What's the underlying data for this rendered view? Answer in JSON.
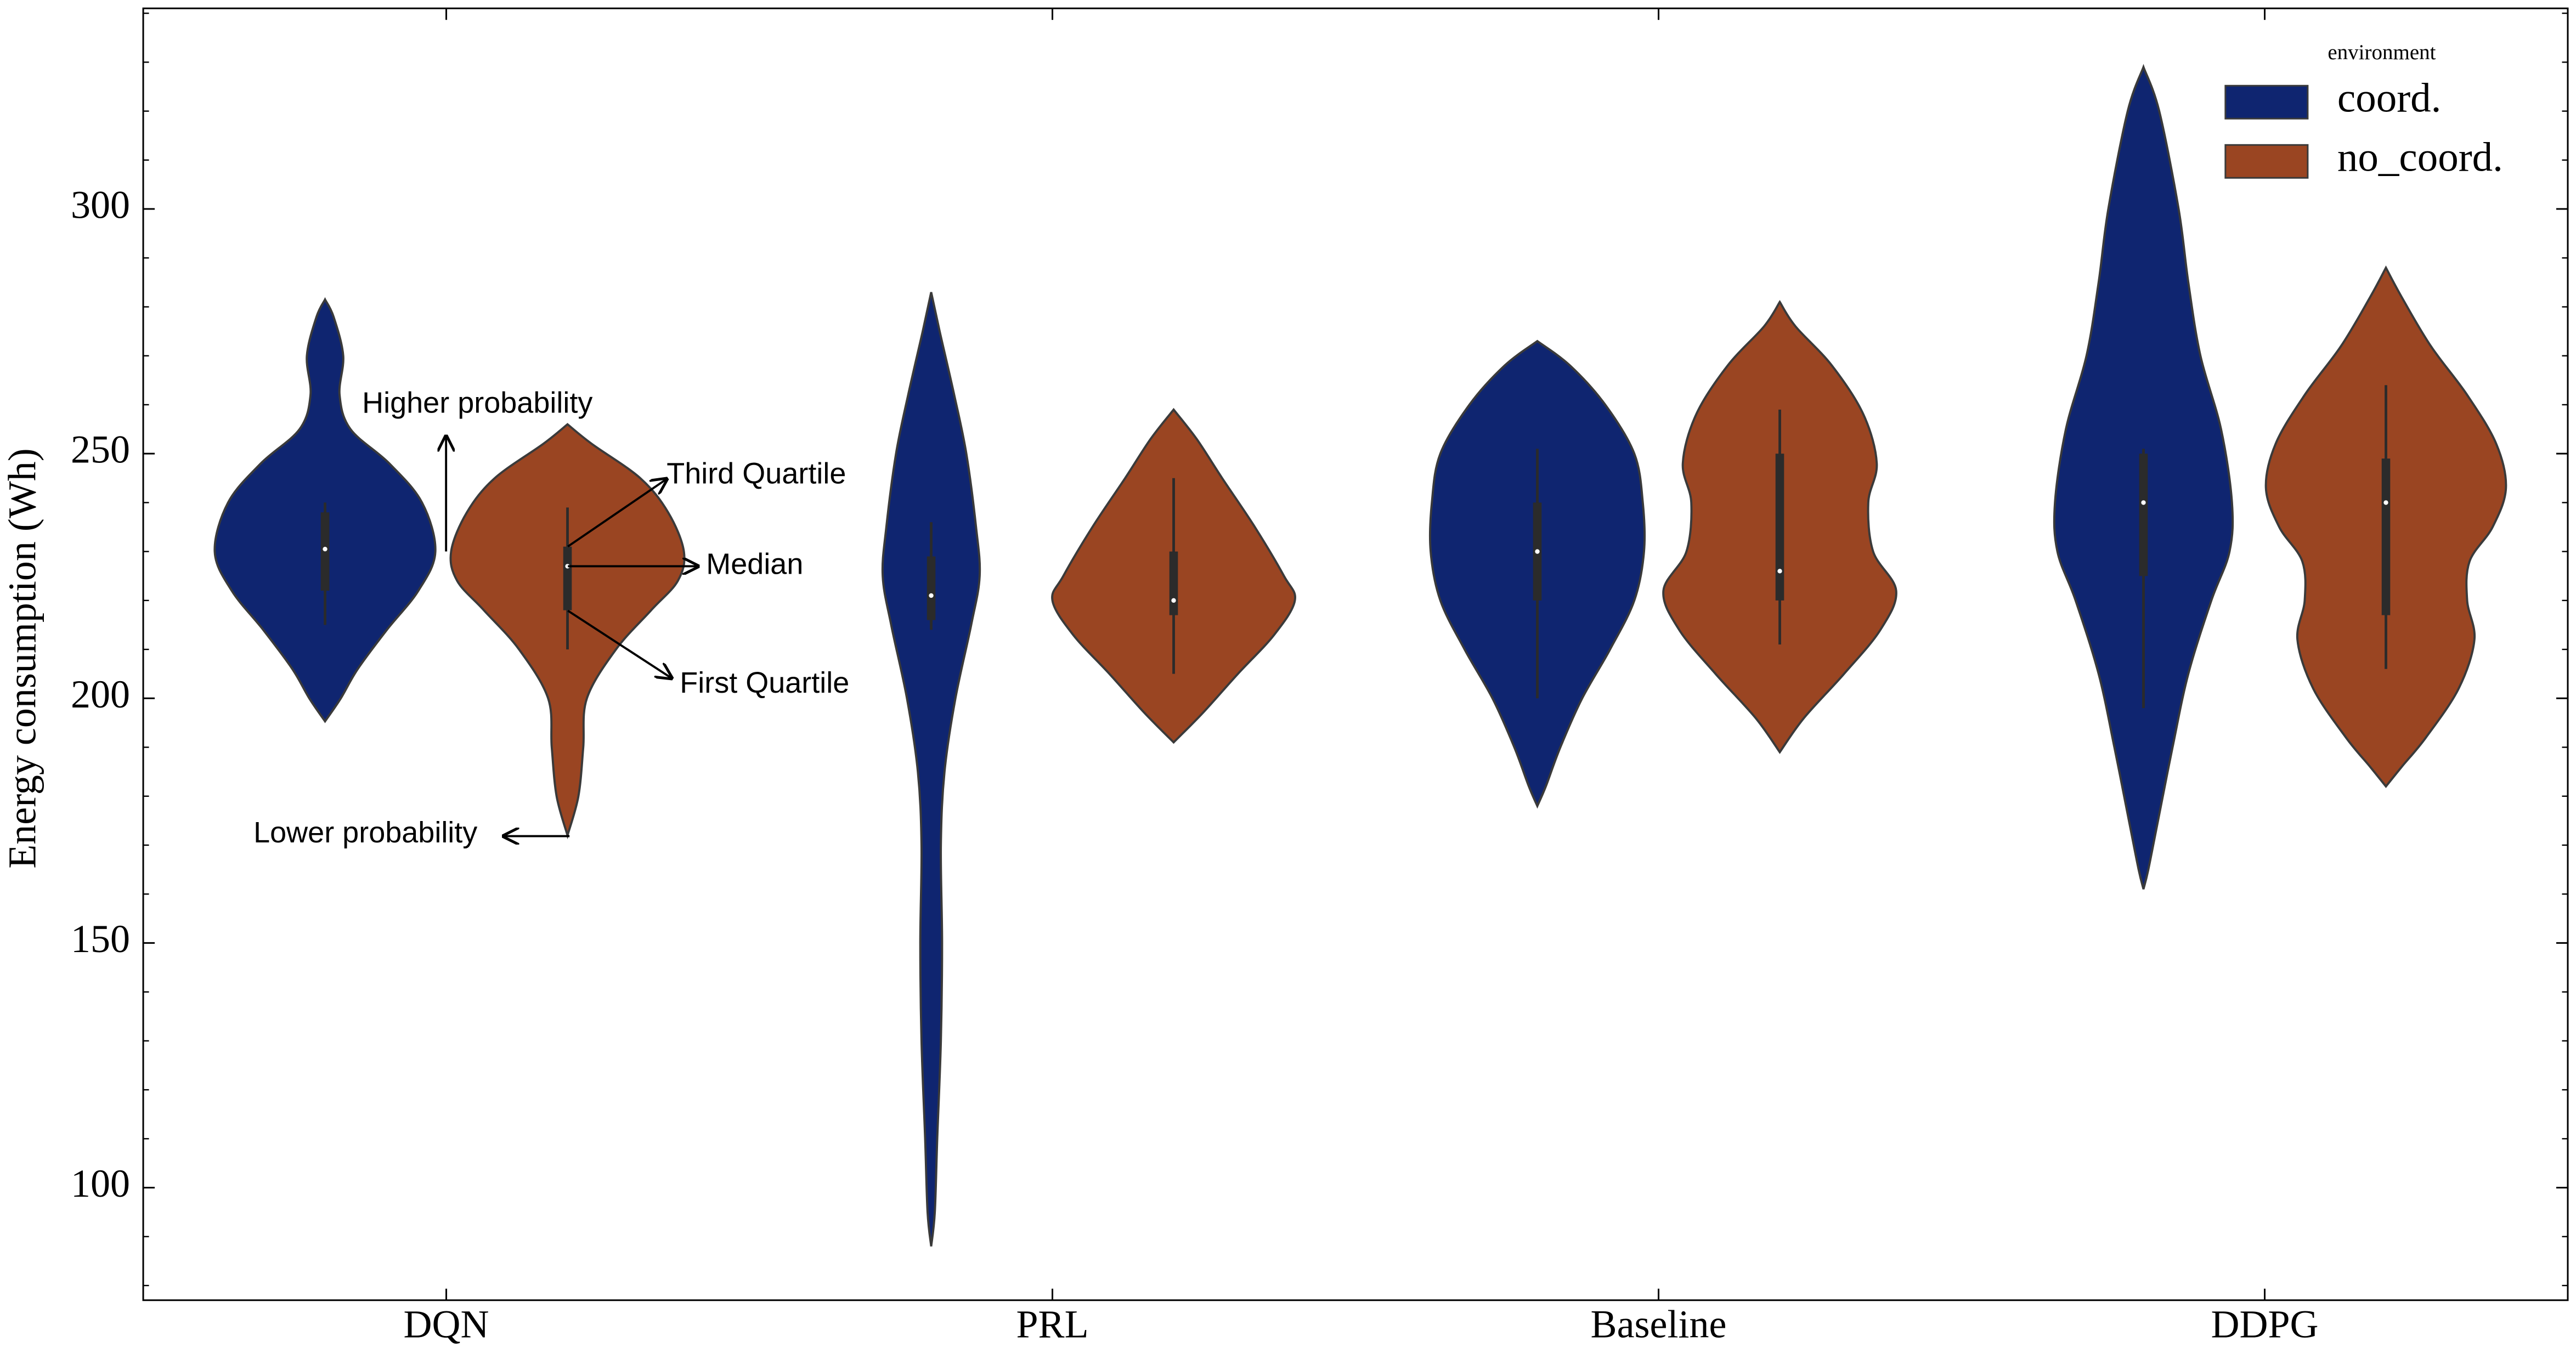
{
  "chart_data": {
    "type": "violin",
    "y_label": "Energy consumption (Wh)",
    "categories": [
      "DQN",
      "PRL",
      "Baseline",
      "DDPG"
    ],
    "ylim": [
      77,
      341
    ],
    "yticks": [
      100,
      150,
      200,
      250,
      300
    ],
    "yminorticks": [
      80,
      90,
      110,
      120,
      130,
      140,
      160,
      170,
      180,
      190,
      210,
      220,
      230,
      240,
      260,
      270,
      280,
      290,
      310,
      320,
      330,
      340
    ],
    "legend_title": "environment",
    "legend_position": "upper right",
    "series": [
      {
        "name": "coord.",
        "color": "#0f2570",
        "whisker_low": [
          215,
          214,
          200,
          198
        ],
        "q1": [
          222,
          216,
          220,
          225
        ],
        "median": [
          230.5,
          221,
          230,
          240
        ],
        "q3": [
          238,
          229,
          240,
          250
        ],
        "whisker_high": [
          240,
          236,
          251,
          251
        ],
        "profiles": [
          {
            "y": [
              281.5,
              278,
              270,
              262,
              255,
              248,
              240,
              230,
              222,
              214,
              206,
              200,
              195.3
            ],
            "width": [
              0,
              0.07,
              0.15,
              0.12,
              0.21,
              0.53,
              0.8,
              0.91,
              0.77,
              0.51,
              0.27,
              0.13,
              0
            ]
          },
          {
            "y": [
              283,
              275,
              262,
              250,
              235,
              225,
              215,
              200,
              185,
              170,
              150,
              130,
              110,
              95,
              88
            ],
            "width": [
              0,
              0.07,
              0.19,
              0.29,
              0.37,
              0.4,
              0.33,
              0.2,
              0.11,
              0.08,
              0.09,
              0.08,
              0.05,
              0.03,
              0
            ]
          },
          {
            "y": [
              273,
              268,
              260,
              250,
              240,
              230,
              220,
              210,
              200,
              190,
              182,
              178
            ],
            "width": [
              0,
              0.27,
              0.56,
              0.8,
              0.87,
              0.88,
              0.8,
              0.6,
              0.37,
              0.19,
              0.07,
              0
            ]
          },
          {
            "y": [
              329,
              320,
              300,
              285,
              270,
              255,
              240,
              230,
              220,
              205,
              190,
              175,
              165,
              161
            ],
            "width": [
              0,
              0.13,
              0.29,
              0.37,
              0.47,
              0.64,
              0.73,
              0.71,
              0.56,
              0.37,
              0.24,
              0.12,
              0.04,
              0
            ]
          }
        ]
      },
      {
        "name": "no_coord.",
        "color": "#9a4522",
        "whisker_low": [
          210,
          205,
          211,
          206
        ],
        "q1": [
          218,
          217,
          220,
          217
        ],
        "median": [
          227,
          220,
          226,
          240
        ],
        "q3": [
          231,
          230,
          250,
          249
        ],
        "whisker_high": [
          239,
          245,
          259,
          264
        ],
        "profiles": [
          {
            "y": [
              256,
              252,
              245,
              238,
              230,
              224,
              218,
              210,
              200,
              190,
              180,
              172
            ],
            "width": [
              0,
              0.2,
              0.6,
              0.83,
              0.96,
              0.91,
              0.69,
              0.4,
              0.16,
              0.13,
              0.09,
              0
            ]
          },
          {
            "y": [
              259,
              253,
              245,
              235,
              225,
              220,
              213,
              205,
              197,
              191
            ],
            "width": [
              0,
              0.19,
              0.4,
              0.67,
              0.91,
              1.0,
              0.83,
              0.53,
              0.24,
              0
            ]
          },
          {
            "y": [
              281,
              276,
              268,
              258,
              248,
              240,
              230,
              222,
              214,
              205,
              196,
              189
            ],
            "width": [
              0,
              0.13,
              0.43,
              0.69,
              0.8,
              0.73,
              0.77,
              0.96,
              0.83,
              0.53,
              0.2,
              0
            ]
          },
          {
            "y": [
              288,
              282,
              272,
              262,
              252,
              243,
              235,
              228,
              220,
              212,
              202,
              192,
              186,
              182
            ],
            "width": [
              0,
              0.13,
              0.37,
              0.67,
              0.91,
              0.99,
              0.88,
              0.69,
              0.67,
              0.73,
              0.6,
              0.33,
              0.13,
              0
            ]
          }
        ]
      }
    ],
    "annotations": [
      {
        "text": "Higher probability"
      },
      {
        "text": "Third Quartile"
      },
      {
        "text": "Median"
      },
      {
        "text": "First Quartile"
      },
      {
        "text": "Lower probability"
      }
    ]
  }
}
